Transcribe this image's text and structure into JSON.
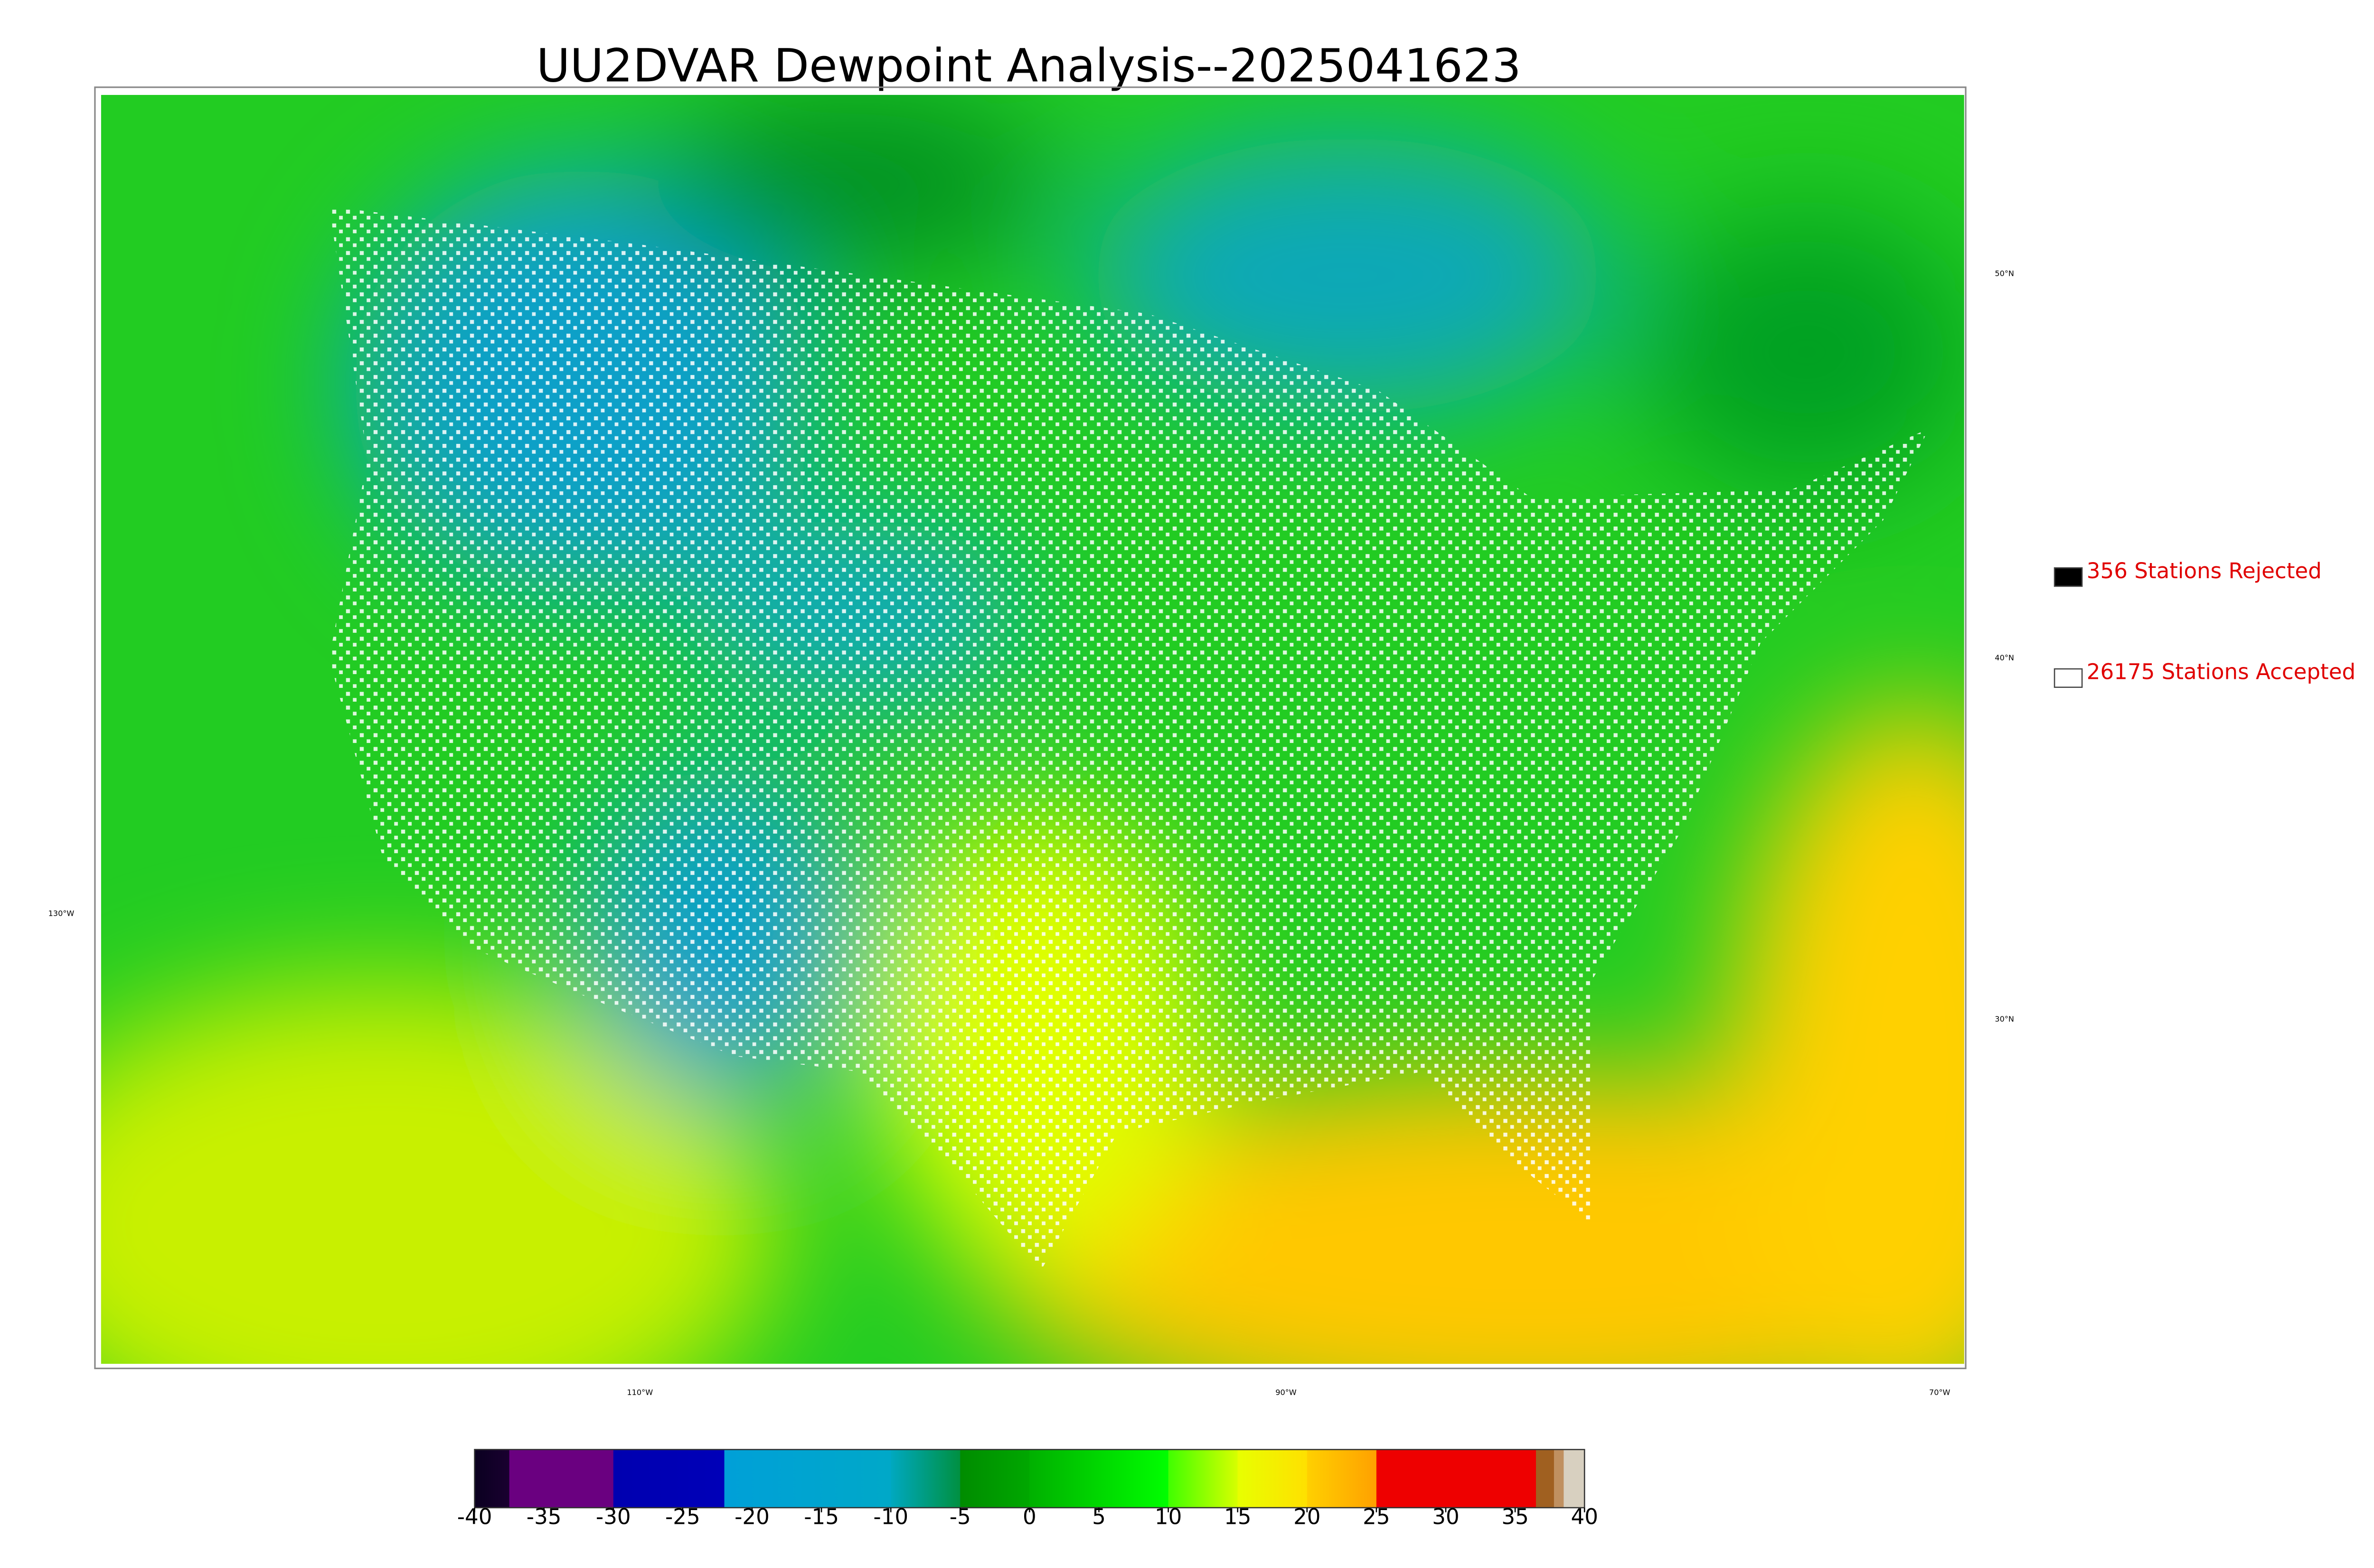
{
  "title": "UU2DVAR Dewpoint Analysis--2025041623",
  "legend": [
    {
      "label": "356 Stations Rejected",
      "color": "#000000"
    },
    {
      "label": "26175 Stations Accepted",
      "color": "#ffffff"
    }
  ],
  "graticule": {
    "lon": [
      "130°W",
      "110°W",
      "90°W",
      "70°W"
    ],
    "lat": [
      "50°N",
      "40°N",
      "30°N"
    ]
  },
  "colorbar": {
    "min": -40,
    "max": 40,
    "ticks": [
      -40,
      -35,
      -30,
      -25,
      -20,
      -15,
      -10,
      -5,
      0,
      5,
      10,
      15,
      20,
      25,
      30,
      35,
      40
    ],
    "segments": [
      {
        "from": -40,
        "to": -37.5,
        "colors": [
          "#0a0020",
          "#1a0030"
        ]
      },
      {
        "from": -37.5,
        "to": -30,
        "colors": [
          "#6a0080",
          "#6a0080"
        ]
      },
      {
        "from": -30,
        "to": -22,
        "colors": [
          "#0000b0",
          "#0000b8"
        ]
      },
      {
        "from": -22,
        "to": -10,
        "colors": [
          "#00a0d8",
          "#00a8c8"
        ]
      },
      {
        "from": -10,
        "to": -5,
        "colors": [
          "#00a8c0",
          "#009040"
        ]
      },
      {
        "from": -5,
        "to": 0,
        "colors": [
          "#008c00",
          "#00a800"
        ]
      },
      {
        "from": 0,
        "to": 10,
        "colors": [
          "#00b000",
          "#00ff00"
        ]
      },
      {
        "from": 10,
        "to": 15,
        "colors": [
          "#40ff00",
          "#d8ff00"
        ]
      },
      {
        "from": 15,
        "to": 20,
        "colors": [
          "#e8ff00",
          "#ffe000"
        ]
      },
      {
        "from": 20,
        "to": 25,
        "colors": [
          "#ffd000",
          "#ffa000"
        ]
      },
      {
        "from": 25,
        "to": 36.5,
        "colors": [
          "#ee0000",
          "#ee0000"
        ]
      },
      {
        "from": 36.5,
        "to": 37.8,
        "colors": [
          "#a06020",
          "#a06020"
        ]
      },
      {
        "from": 37.8,
        "to": 38.5,
        "colors": [
          "#c09060",
          "#c09060"
        ]
      },
      {
        "from": 38.5,
        "to": 40,
        "colors": [
          "#d8d0c0",
          "#d8d0c0"
        ]
      }
    ]
  }
}
